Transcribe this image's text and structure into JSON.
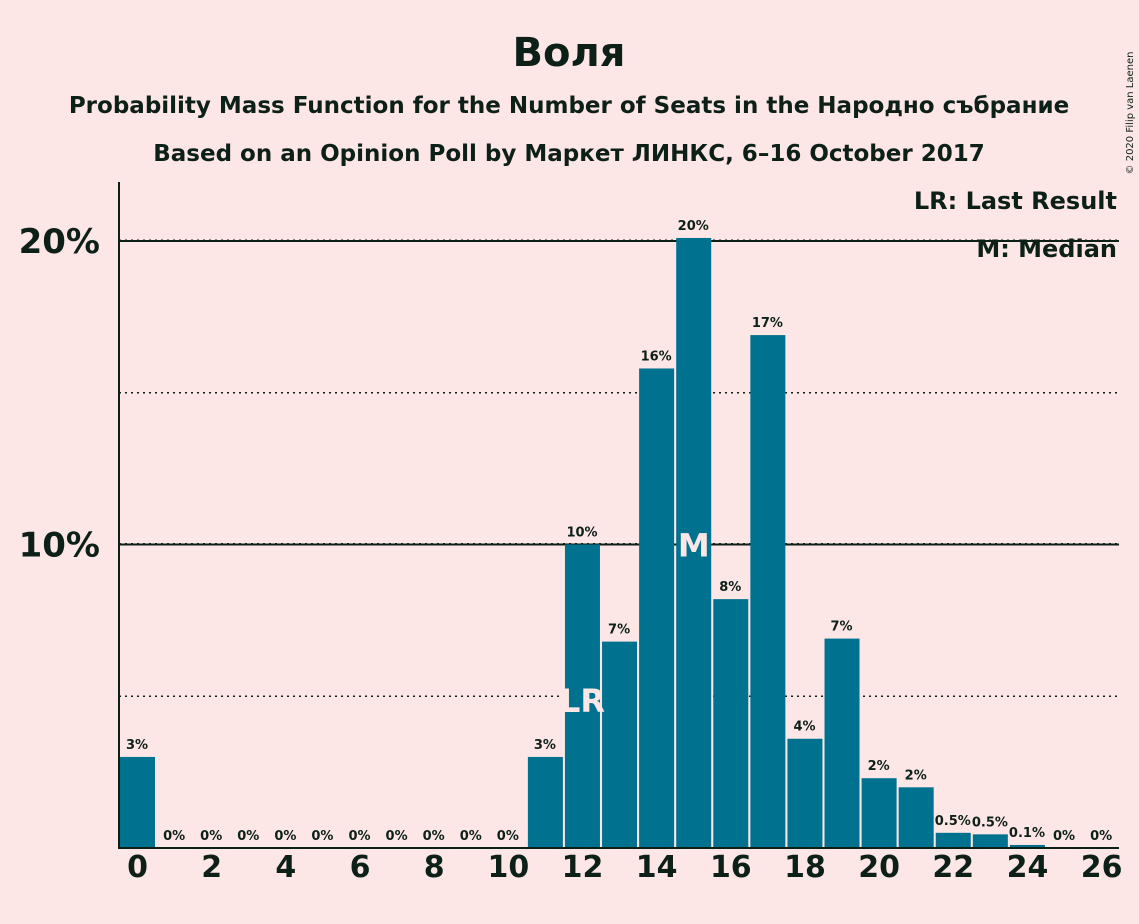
{
  "title": "Воля",
  "subtitle1": "Probability Mass Function for the Number of Seats in the Народно събрание",
  "subtitle2": "Based on an Opinion Poll by Маркет ЛИНКС, 6–16 October 2017",
  "legend": {
    "last_result": "LR: Last Result",
    "median": "M: Median"
  },
  "copyright": "© 2020 Filip van Laenen",
  "colors": {
    "bar": "#00718f",
    "background": "#fde6e6",
    "text": "#0d2018"
  },
  "chart_data": {
    "type": "bar",
    "x": [
      0,
      1,
      2,
      3,
      4,
      5,
      6,
      7,
      8,
      9,
      10,
      11,
      12,
      13,
      14,
      15,
      16,
      17,
      18,
      19,
      20,
      21,
      22,
      23,
      24,
      25,
      26
    ],
    "values": [
      3.0,
      0,
      0,
      0,
      0,
      0,
      0,
      0,
      0,
      0,
      0,
      3.0,
      10.0,
      6.8,
      15.8,
      20.1,
      8.2,
      16.9,
      3.6,
      6.9,
      2.3,
      2.0,
      0.5,
      0.45,
      0.1,
      0,
      0
    ],
    "data_labels": [
      "3%",
      "0%",
      "0%",
      "0%",
      "0%",
      "0%",
      "0%",
      "0%",
      "0%",
      "0%",
      "0%",
      "3%",
      "10%",
      "7%",
      "16%",
      "20%",
      "8%",
      "17%",
      "4%",
      "7%",
      "2%",
      "2%",
      "0.5%",
      "0.5%",
      "0.1%",
      "0%",
      "0%"
    ],
    "x_ticks": [
      0,
      2,
      4,
      6,
      8,
      10,
      12,
      14,
      16,
      18,
      20,
      22,
      24,
      26
    ],
    "y_ticks": [
      {
        "value": 10,
        "label": "10%"
      },
      {
        "value": 20,
        "label": "20%"
      }
    ],
    "dotted_gridlines": [
      5,
      15
    ],
    "ylim": [
      0,
      22
    ],
    "last_result_seat": 12,
    "last_result_marker": "LR",
    "median_seat": 15,
    "median_marker": "M"
  }
}
